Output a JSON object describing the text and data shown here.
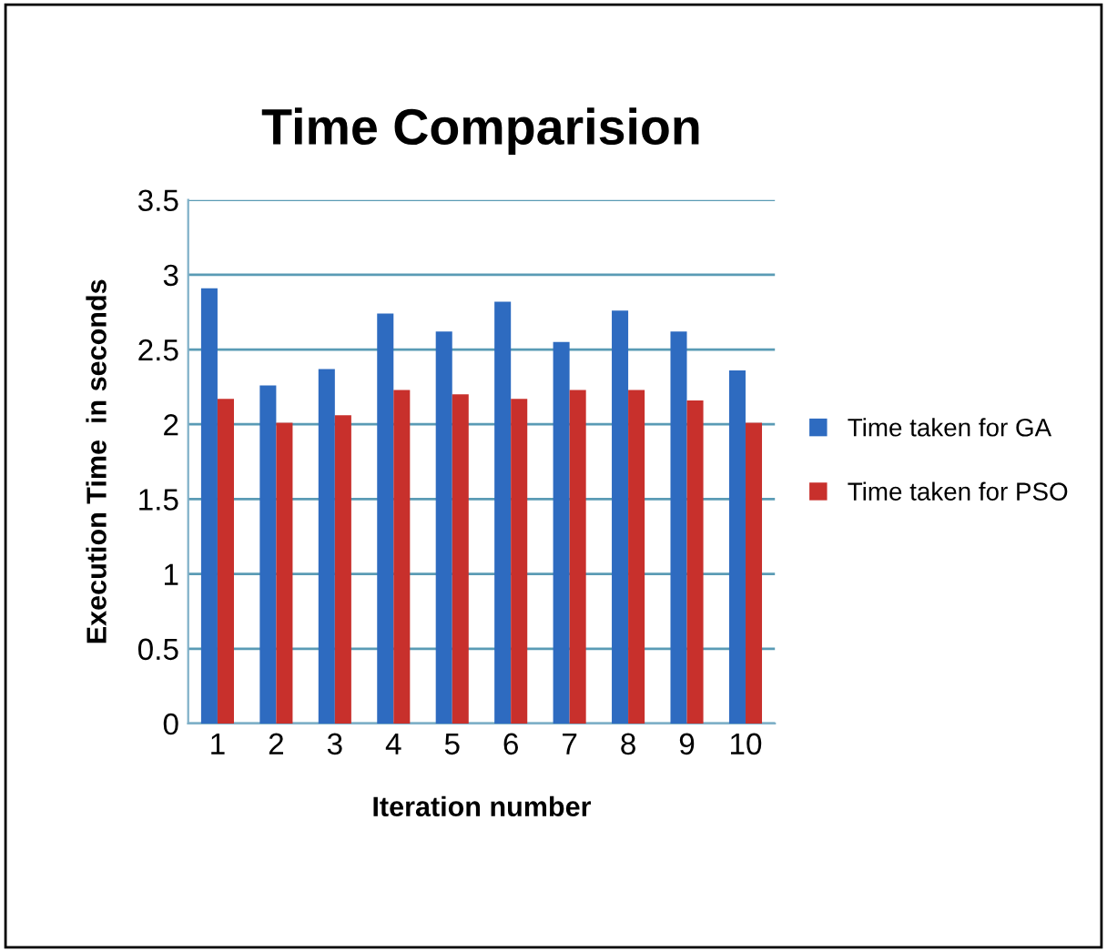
{
  "chart_data": {
    "type": "bar",
    "title": "Time Comparision",
    "xlabel": "Iteration number",
    "ylabel": "Execution Time  in seconds",
    "categories": [
      "1",
      "2",
      "3",
      "4",
      "5",
      "6",
      "7",
      "8",
      "9",
      "10"
    ],
    "series": [
      {
        "name": "Time taken for GA",
        "color": "#2e6bc0",
        "values": [
          2.91,
          2.26,
          2.37,
          2.74,
          2.62,
          2.82,
          2.55,
          2.76,
          2.62,
          2.36
        ]
      },
      {
        "name": "Time taken for PSO",
        "color": "#c8302c",
        "values": [
          2.17,
          2.01,
          2.06,
          2.23,
          2.2,
          2.17,
          2.23,
          2.23,
          2.16,
          2.01
        ]
      }
    ],
    "ylim": [
      0,
      3.5
    ],
    "yticks": [
      0,
      0.5,
      1,
      1.5,
      2,
      2.5,
      3,
      3.5
    ],
    "grid": "y",
    "legend": "right"
  }
}
